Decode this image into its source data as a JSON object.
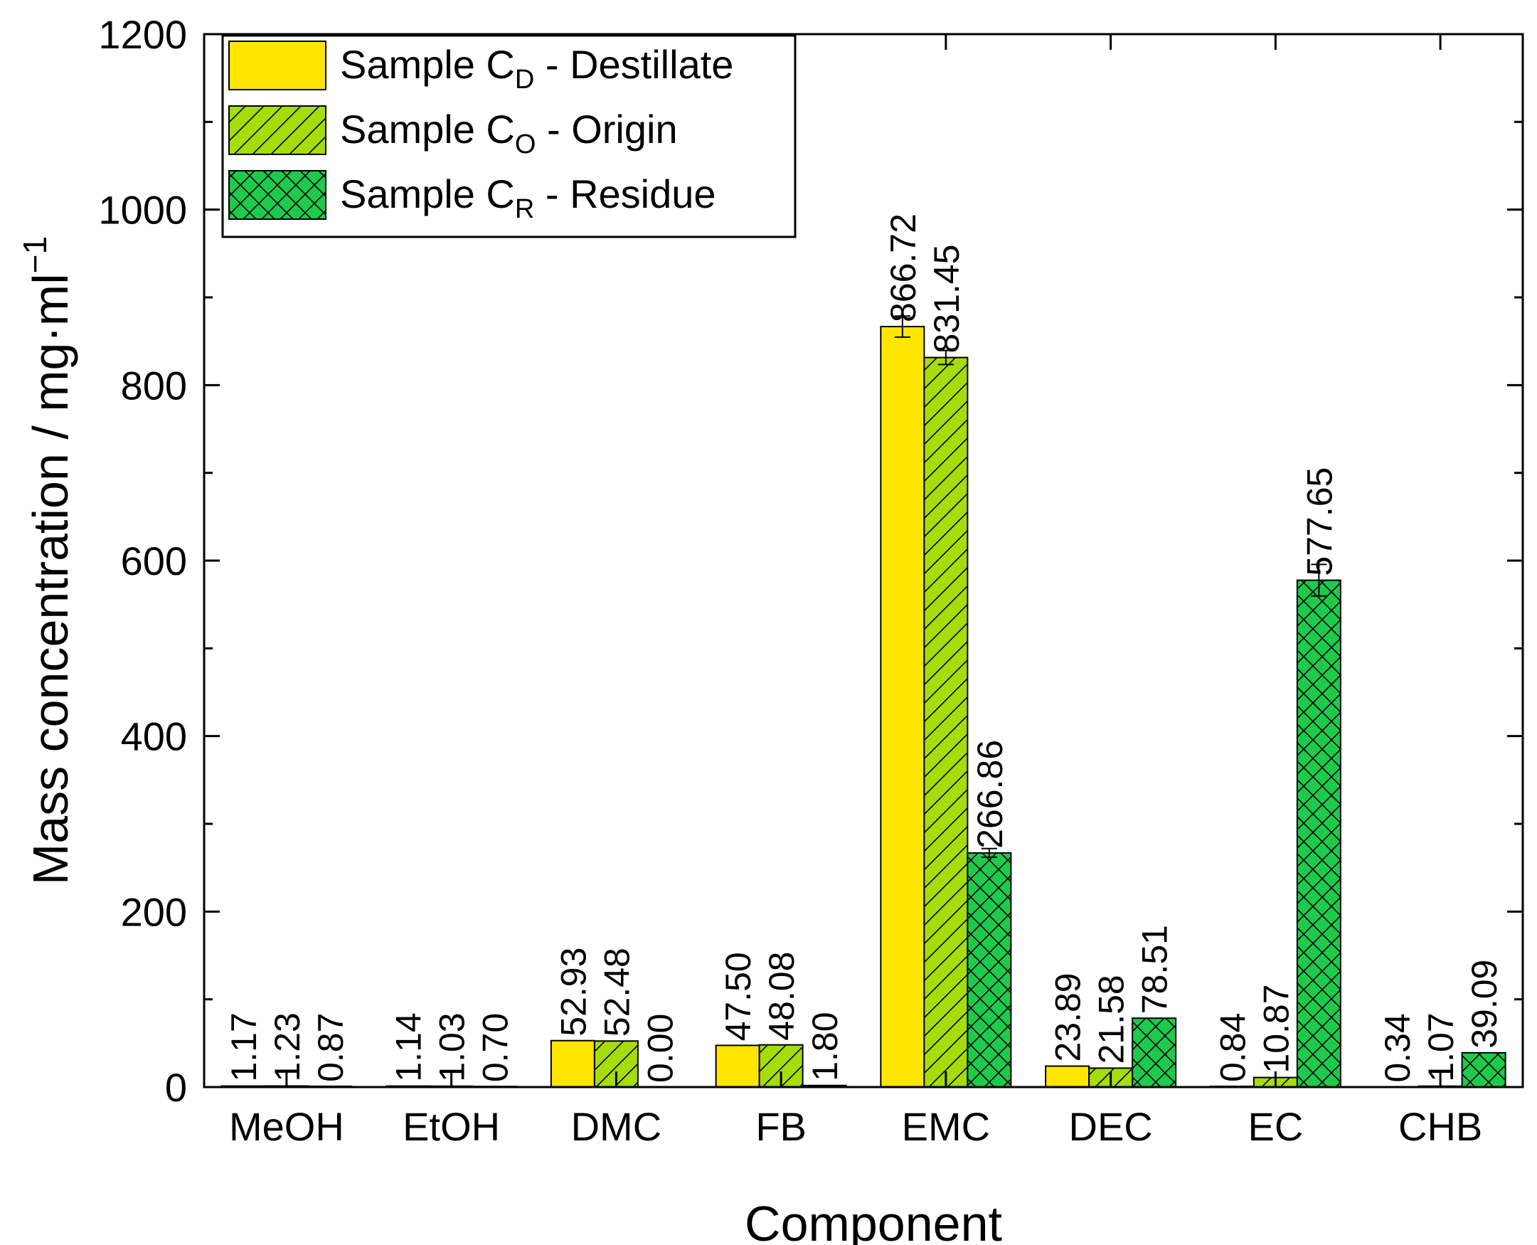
{
  "chart_data": {
    "type": "bar",
    "title": "",
    "xlabel": "Component",
    "ylabel_main": "Mass concentration / mg·ml",
    "ylabel_sup": "−1",
    "ylim": [
      0,
      1200
    ],
    "yticks": [
      "0",
      "200",
      "400",
      "600",
      "800",
      "1000",
      "1200"
    ],
    "categories": [
      "MeOH",
      "EtOH",
      "DMC",
      "FB",
      "EMC",
      "DEC",
      "EC",
      "CHB"
    ],
    "legend_position": "top-left",
    "series": [
      {
        "name": "Sample CD - Destillate",
        "legend_main": "Sample C",
        "legend_sub": "D",
        "legend_rest": " - Destillate",
        "color": "#FFE600",
        "pattern": "solid",
        "values": [
          1.17,
          1.14,
          52.93,
          47.5,
          866.72,
          23.89,
          0.84,
          0.34
        ],
        "labels": [
          "1.17",
          "1.14",
          "52.93",
          "47.50",
          "866.72",
          "23.89",
          "0.84",
          "0.34"
        ],
        "errors": [
          0,
          0,
          0,
          0,
          12,
          0,
          0,
          0
        ]
      },
      {
        "name": "Sample CO - Origin",
        "legend_main": "Sample C",
        "legend_sub": "O",
        "legend_rest": " - Origin",
        "color": "#A6DC0A",
        "pattern": "diagonal",
        "values": [
          1.23,
          1.03,
          52.48,
          48.08,
          831.45,
          21.58,
          10.87,
          1.07
        ],
        "labels": [
          "1.23",
          "1.03",
          "52.48",
          "48.08",
          "831.45",
          "21.58",
          "10.87",
          "1.07"
        ],
        "errors": [
          0,
          0,
          0,
          0,
          8,
          0,
          0,
          0
        ]
      },
      {
        "name": "Sample CR - Residue",
        "legend_main": "Sample C",
        "legend_sub": "R",
        "legend_rest": " - Residue",
        "color": "#1ECA4C",
        "pattern": "crosshatch",
        "values": [
          0.87,
          0.7,
          0.0,
          1.8,
          266.86,
          78.51,
          577.65,
          39.09
        ],
        "labels": [
          "0.87",
          "0.70",
          "0.00",
          "1.80",
          "266.86",
          "78.51",
          "577.65",
          "39.09"
        ],
        "errors": [
          0,
          0,
          0,
          0,
          5,
          0,
          18,
          0
        ]
      }
    ]
  }
}
